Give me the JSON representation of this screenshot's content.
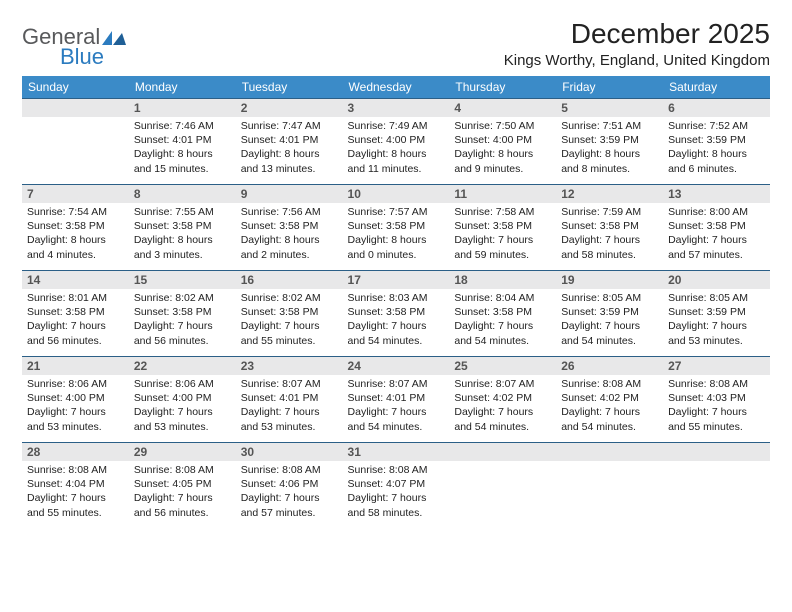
{
  "logo": {
    "general": "General",
    "blue": "Blue"
  },
  "title": "December 2025",
  "location": "Kings Worthy, England, United Kingdom",
  "header_bg": "#3b8bc8",
  "header_fg": "#ffffff",
  "daynum_bg": "#e8e8e9",
  "rule_color": "#2b5f87",
  "weekdays": [
    "Sunday",
    "Monday",
    "Tuesday",
    "Wednesday",
    "Thursday",
    "Friday",
    "Saturday"
  ],
  "weeks": [
    [
      null,
      {
        "n": "1",
        "sr": "Sunrise: 7:46 AM",
        "ss": "Sunset: 4:01 PM",
        "d1": "Daylight: 8 hours",
        "d2": "and 15 minutes."
      },
      {
        "n": "2",
        "sr": "Sunrise: 7:47 AM",
        "ss": "Sunset: 4:01 PM",
        "d1": "Daylight: 8 hours",
        "d2": "and 13 minutes."
      },
      {
        "n": "3",
        "sr": "Sunrise: 7:49 AM",
        "ss": "Sunset: 4:00 PM",
        "d1": "Daylight: 8 hours",
        "d2": "and 11 minutes."
      },
      {
        "n": "4",
        "sr": "Sunrise: 7:50 AM",
        "ss": "Sunset: 4:00 PM",
        "d1": "Daylight: 8 hours",
        "d2": "and 9 minutes."
      },
      {
        "n": "5",
        "sr": "Sunrise: 7:51 AM",
        "ss": "Sunset: 3:59 PM",
        "d1": "Daylight: 8 hours",
        "d2": "and 8 minutes."
      },
      {
        "n": "6",
        "sr": "Sunrise: 7:52 AM",
        "ss": "Sunset: 3:59 PM",
        "d1": "Daylight: 8 hours",
        "d2": "and 6 minutes."
      }
    ],
    [
      {
        "n": "7",
        "sr": "Sunrise: 7:54 AM",
        "ss": "Sunset: 3:58 PM",
        "d1": "Daylight: 8 hours",
        "d2": "and 4 minutes."
      },
      {
        "n": "8",
        "sr": "Sunrise: 7:55 AM",
        "ss": "Sunset: 3:58 PM",
        "d1": "Daylight: 8 hours",
        "d2": "and 3 minutes."
      },
      {
        "n": "9",
        "sr": "Sunrise: 7:56 AM",
        "ss": "Sunset: 3:58 PM",
        "d1": "Daylight: 8 hours",
        "d2": "and 2 minutes."
      },
      {
        "n": "10",
        "sr": "Sunrise: 7:57 AM",
        "ss": "Sunset: 3:58 PM",
        "d1": "Daylight: 8 hours",
        "d2": "and 0 minutes."
      },
      {
        "n": "11",
        "sr": "Sunrise: 7:58 AM",
        "ss": "Sunset: 3:58 PM",
        "d1": "Daylight: 7 hours",
        "d2": "and 59 minutes."
      },
      {
        "n": "12",
        "sr": "Sunrise: 7:59 AM",
        "ss": "Sunset: 3:58 PM",
        "d1": "Daylight: 7 hours",
        "d2": "and 58 minutes."
      },
      {
        "n": "13",
        "sr": "Sunrise: 8:00 AM",
        "ss": "Sunset: 3:58 PM",
        "d1": "Daylight: 7 hours",
        "d2": "and 57 minutes."
      }
    ],
    [
      {
        "n": "14",
        "sr": "Sunrise: 8:01 AM",
        "ss": "Sunset: 3:58 PM",
        "d1": "Daylight: 7 hours",
        "d2": "and 56 minutes."
      },
      {
        "n": "15",
        "sr": "Sunrise: 8:02 AM",
        "ss": "Sunset: 3:58 PM",
        "d1": "Daylight: 7 hours",
        "d2": "and 56 minutes."
      },
      {
        "n": "16",
        "sr": "Sunrise: 8:02 AM",
        "ss": "Sunset: 3:58 PM",
        "d1": "Daylight: 7 hours",
        "d2": "and 55 minutes."
      },
      {
        "n": "17",
        "sr": "Sunrise: 8:03 AM",
        "ss": "Sunset: 3:58 PM",
        "d1": "Daylight: 7 hours",
        "d2": "and 54 minutes."
      },
      {
        "n": "18",
        "sr": "Sunrise: 8:04 AM",
        "ss": "Sunset: 3:58 PM",
        "d1": "Daylight: 7 hours",
        "d2": "and 54 minutes."
      },
      {
        "n": "19",
        "sr": "Sunrise: 8:05 AM",
        "ss": "Sunset: 3:59 PM",
        "d1": "Daylight: 7 hours",
        "d2": "and 54 minutes."
      },
      {
        "n": "20",
        "sr": "Sunrise: 8:05 AM",
        "ss": "Sunset: 3:59 PM",
        "d1": "Daylight: 7 hours",
        "d2": "and 53 minutes."
      }
    ],
    [
      {
        "n": "21",
        "sr": "Sunrise: 8:06 AM",
        "ss": "Sunset: 4:00 PM",
        "d1": "Daylight: 7 hours",
        "d2": "and 53 minutes."
      },
      {
        "n": "22",
        "sr": "Sunrise: 8:06 AM",
        "ss": "Sunset: 4:00 PM",
        "d1": "Daylight: 7 hours",
        "d2": "and 53 minutes."
      },
      {
        "n": "23",
        "sr": "Sunrise: 8:07 AM",
        "ss": "Sunset: 4:01 PM",
        "d1": "Daylight: 7 hours",
        "d2": "and 53 minutes."
      },
      {
        "n": "24",
        "sr": "Sunrise: 8:07 AM",
        "ss": "Sunset: 4:01 PM",
        "d1": "Daylight: 7 hours",
        "d2": "and 54 minutes."
      },
      {
        "n": "25",
        "sr": "Sunrise: 8:07 AM",
        "ss": "Sunset: 4:02 PM",
        "d1": "Daylight: 7 hours",
        "d2": "and 54 minutes."
      },
      {
        "n": "26",
        "sr": "Sunrise: 8:08 AM",
        "ss": "Sunset: 4:02 PM",
        "d1": "Daylight: 7 hours",
        "d2": "and 54 minutes."
      },
      {
        "n": "27",
        "sr": "Sunrise: 8:08 AM",
        "ss": "Sunset: 4:03 PM",
        "d1": "Daylight: 7 hours",
        "d2": "and 55 minutes."
      }
    ],
    [
      {
        "n": "28",
        "sr": "Sunrise: 8:08 AM",
        "ss": "Sunset: 4:04 PM",
        "d1": "Daylight: 7 hours",
        "d2": "and 55 minutes."
      },
      {
        "n": "29",
        "sr": "Sunrise: 8:08 AM",
        "ss": "Sunset: 4:05 PM",
        "d1": "Daylight: 7 hours",
        "d2": "and 56 minutes."
      },
      {
        "n": "30",
        "sr": "Sunrise: 8:08 AM",
        "ss": "Sunset: 4:06 PM",
        "d1": "Daylight: 7 hours",
        "d2": "and 57 minutes."
      },
      {
        "n": "31",
        "sr": "Sunrise: 8:08 AM",
        "ss": "Sunset: 4:07 PM",
        "d1": "Daylight: 7 hours",
        "d2": "and 58 minutes."
      },
      null,
      null,
      null
    ]
  ]
}
